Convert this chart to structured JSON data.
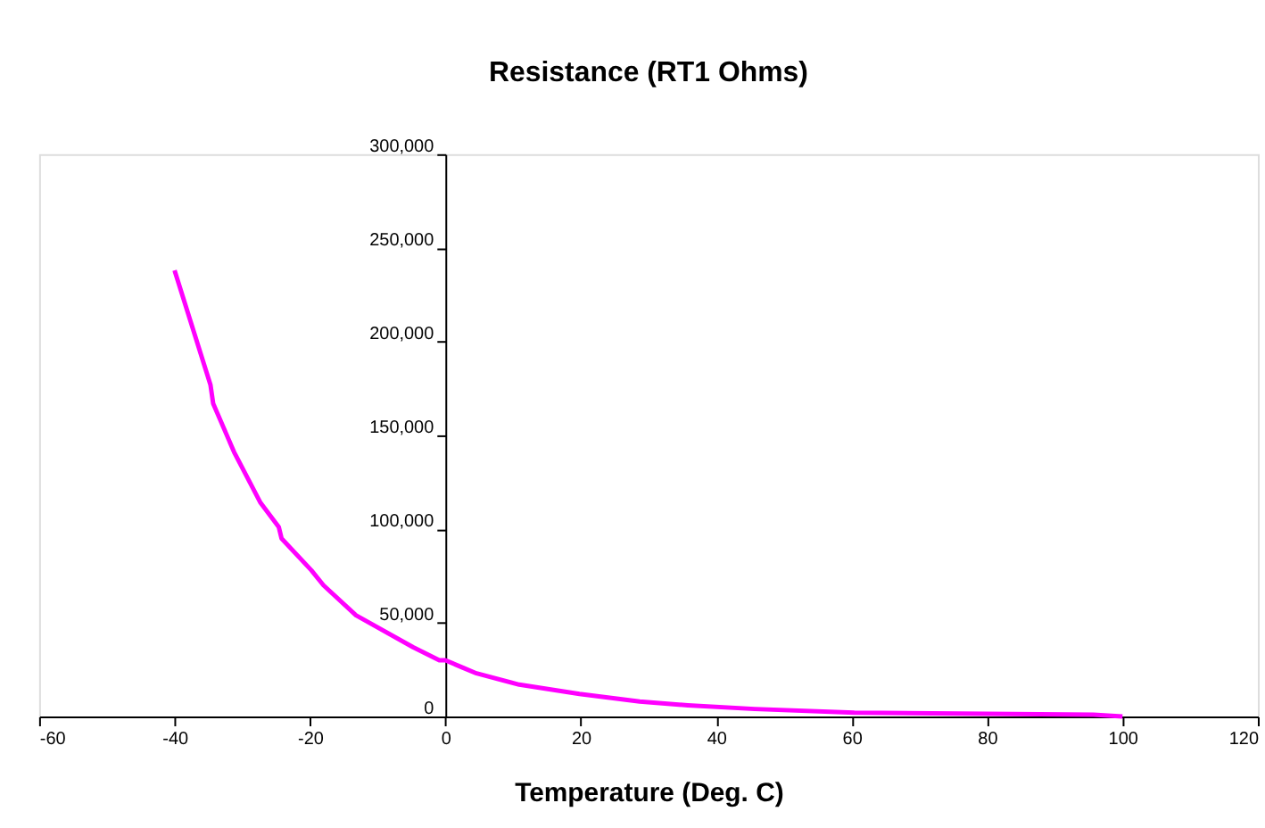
{
  "chart_data": {
    "type": "line",
    "title": "Resistance (RT1 Ohms)",
    "xlabel": "Temperature (Deg. C)",
    "x": [
      -40,
      -34.7,
      -34.3,
      -31.2,
      -27.3,
      -24.6,
      -24.2,
      -19.8,
      -18,
      -13.2,
      -4.8,
      -0.9,
      0,
      2.6,
      4.6,
      10.9,
      19.8,
      28.7,
      35.8,
      45.7,
      60.4,
      95.7,
      100
    ],
    "series": [
      {
        "color": "#ff00ff",
        "values": [
          238000,
          177000,
          167000,
          141000,
          114000,
          101000,
          95000,
          78000,
          70000,
          54000,
          37000,
          30000,
          30000,
          26000,
          23000,
          17000,
          12000,
          8000,
          6000,
          4000,
          2000,
          1000,
          0
        ]
      }
    ],
    "xlim": [
      -60,
      120
    ],
    "xticks": [
      -60,
      -40,
      -20,
      0,
      20,
      40,
      60,
      80,
      100,
      120
    ],
    "ylim": [
      0,
      300000
    ],
    "yticks": [
      {
        "value": 0,
        "label": "0"
      },
      {
        "value": 50000,
        "label": "50,000"
      },
      {
        "value": 100000,
        "label": "100,000"
      },
      {
        "value": 150000,
        "label": "150,000"
      },
      {
        "value": 200000,
        "label": "200,000"
      },
      {
        "value": 250000,
        "label": "250,000"
      },
      {
        "value": 300000,
        "label": "300,000"
      }
    ],
    "grid": false,
    "marker": "none",
    "line_style": "solid"
  }
}
